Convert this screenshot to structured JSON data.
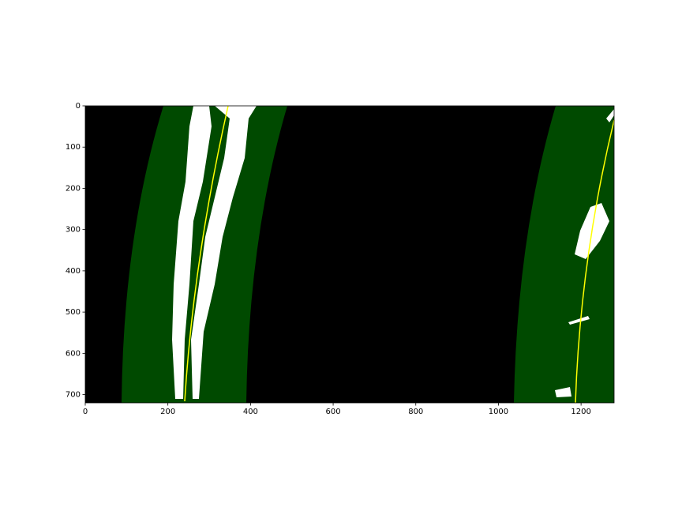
{
  "chart_data": {
    "type": "image",
    "xlim": [
      0,
      1280
    ],
    "ylim": [
      720,
      0
    ],
    "xticks": [
      0,
      200,
      400,
      600,
      800,
      1000,
      1200
    ],
    "yticks": [
      0,
      100,
      200,
      300,
      400,
      500,
      600,
      700
    ]
  }
}
